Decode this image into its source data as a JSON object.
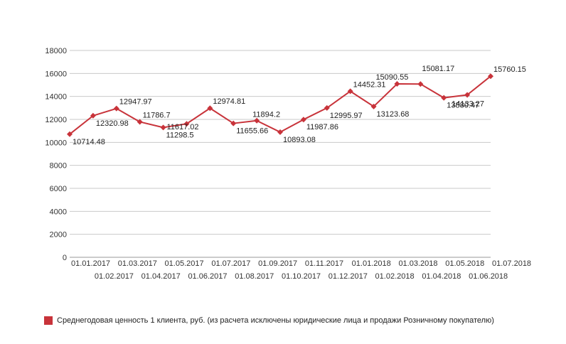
{
  "chart_data": {
    "type": "line",
    "x": [
      "01.01.2017",
      "01.02.2017",
      "01.03.2017",
      "01.04.2017",
      "01.05.2017",
      "01.06.2017",
      "01.07.2017",
      "01.08.2017",
      "01.09.2017",
      "01.10.2017",
      "01.11.2017",
      "01.12.2017",
      "01.01.2018",
      "01.02.2018",
      "01.03.2018",
      "01.04.2018",
      "01.05.2018",
      "01.06.2018",
      "01.07.2018"
    ],
    "series": [
      {
        "name": "Среднегодовая ценность 1 клиента, руб. (из расчета исключены юридические лица и продажи Розничному покупателю)",
        "color": "#c8333a",
        "values": [
          10714.48,
          12320.98,
          12947.97,
          11786.7,
          11298.5,
          11617.02,
          12974.81,
          11655.66,
          11894.2,
          10893.08,
          11987.86,
          12995.97,
          14452.31,
          13123.68,
          15090.55,
          15081.17,
          13880.47,
          14133.27,
          15760.15
        ]
      }
    ],
    "data_labels": [
      "10714.48",
      "12320.98",
      "12947.97",
      "11786.7",
      "11298.5",
      "11617.02",
      "12974.81",
      "11655.66",
      "11894.2",
      "10893.08",
      "11987.86",
      "12995.97",
      "14452.31",
      "13123.68",
      "15090.55",
      "15081.17",
      "13880.47",
      "14133.27",
      "15760.15"
    ],
    "y_ticks": [
      "0",
      "2000",
      "4000",
      "6000",
      "8000",
      "10000",
      "12000",
      "14000",
      "16000",
      "18000"
    ],
    "ylim": [
      0,
      18000
    ],
    "grid": true,
    "legend_position": "bottom-left"
  }
}
